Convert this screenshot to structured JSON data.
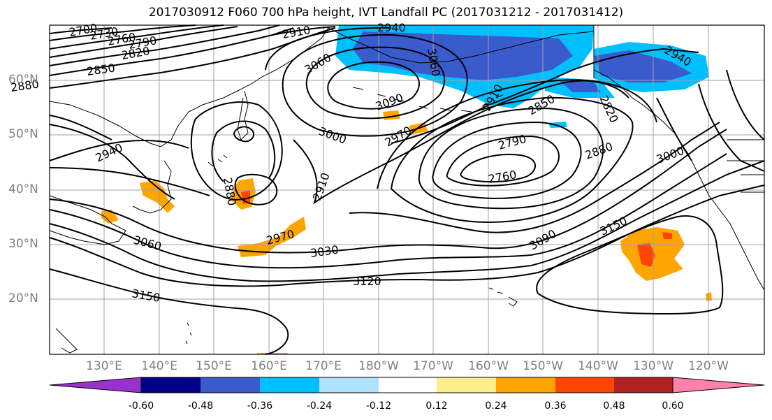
{
  "title": "2017030912 F060 700 hPa height, IVT Landfall PC (2017031212 - 2017031412)",
  "lat_labels": [
    "60°N",
    "50°N",
    "40°N",
    "30°N",
    "20°N"
  ],
  "lon_labels": [
    "130°E",
    "140°E",
    "150°E",
    "160°E",
    "170°E",
    "180°W",
    "170°W",
    "160°W",
    "150°W",
    "140°W",
    "130°W",
    "120°W"
  ],
  "contour_labels": [
    "2700",
    "2730",
    "2760",
    "2790",
    "2820",
    "2850",
    "2880",
    "2910",
    "2940",
    "2970",
    "3000",
    "3030",
    "3060",
    "3090",
    "3120",
    "3150",
    "2790",
    "2760",
    "2880",
    "3000",
    "3090",
    "3150",
    "2910",
    "2880",
    "2970",
    "3030",
    "3060",
    "2940",
    "2850",
    "2820",
    "2910",
    "2940",
    "3060",
    "3090",
    "2970",
    "3000",
    "2820"
  ],
  "colorbar": {
    "tick_labels": [
      "-0.60",
      "-0.48",
      "-0.36",
      "-0.24",
      "-0.12",
      "0.12",
      "0.24",
      "0.36",
      "0.48",
      "0.60"
    ],
    "colors": [
      "#9932cc",
      "#00008b",
      "#3a5bcc",
      "#00bfff",
      "#b0e2ff",
      "#ffffff",
      "#ffec8b",
      "#ffa500",
      "#ff4500",
      "#b22222",
      "#ff82ab"
    ]
  },
  "shading_colors": {
    "blue_dark": "#3a5bcc",
    "blue_light": "#00bfff",
    "pale_blue": "#b0e2ff",
    "orange": "#ffa500",
    "red_orange": "#ff4500",
    "yellow": "#ffec8b"
  }
}
